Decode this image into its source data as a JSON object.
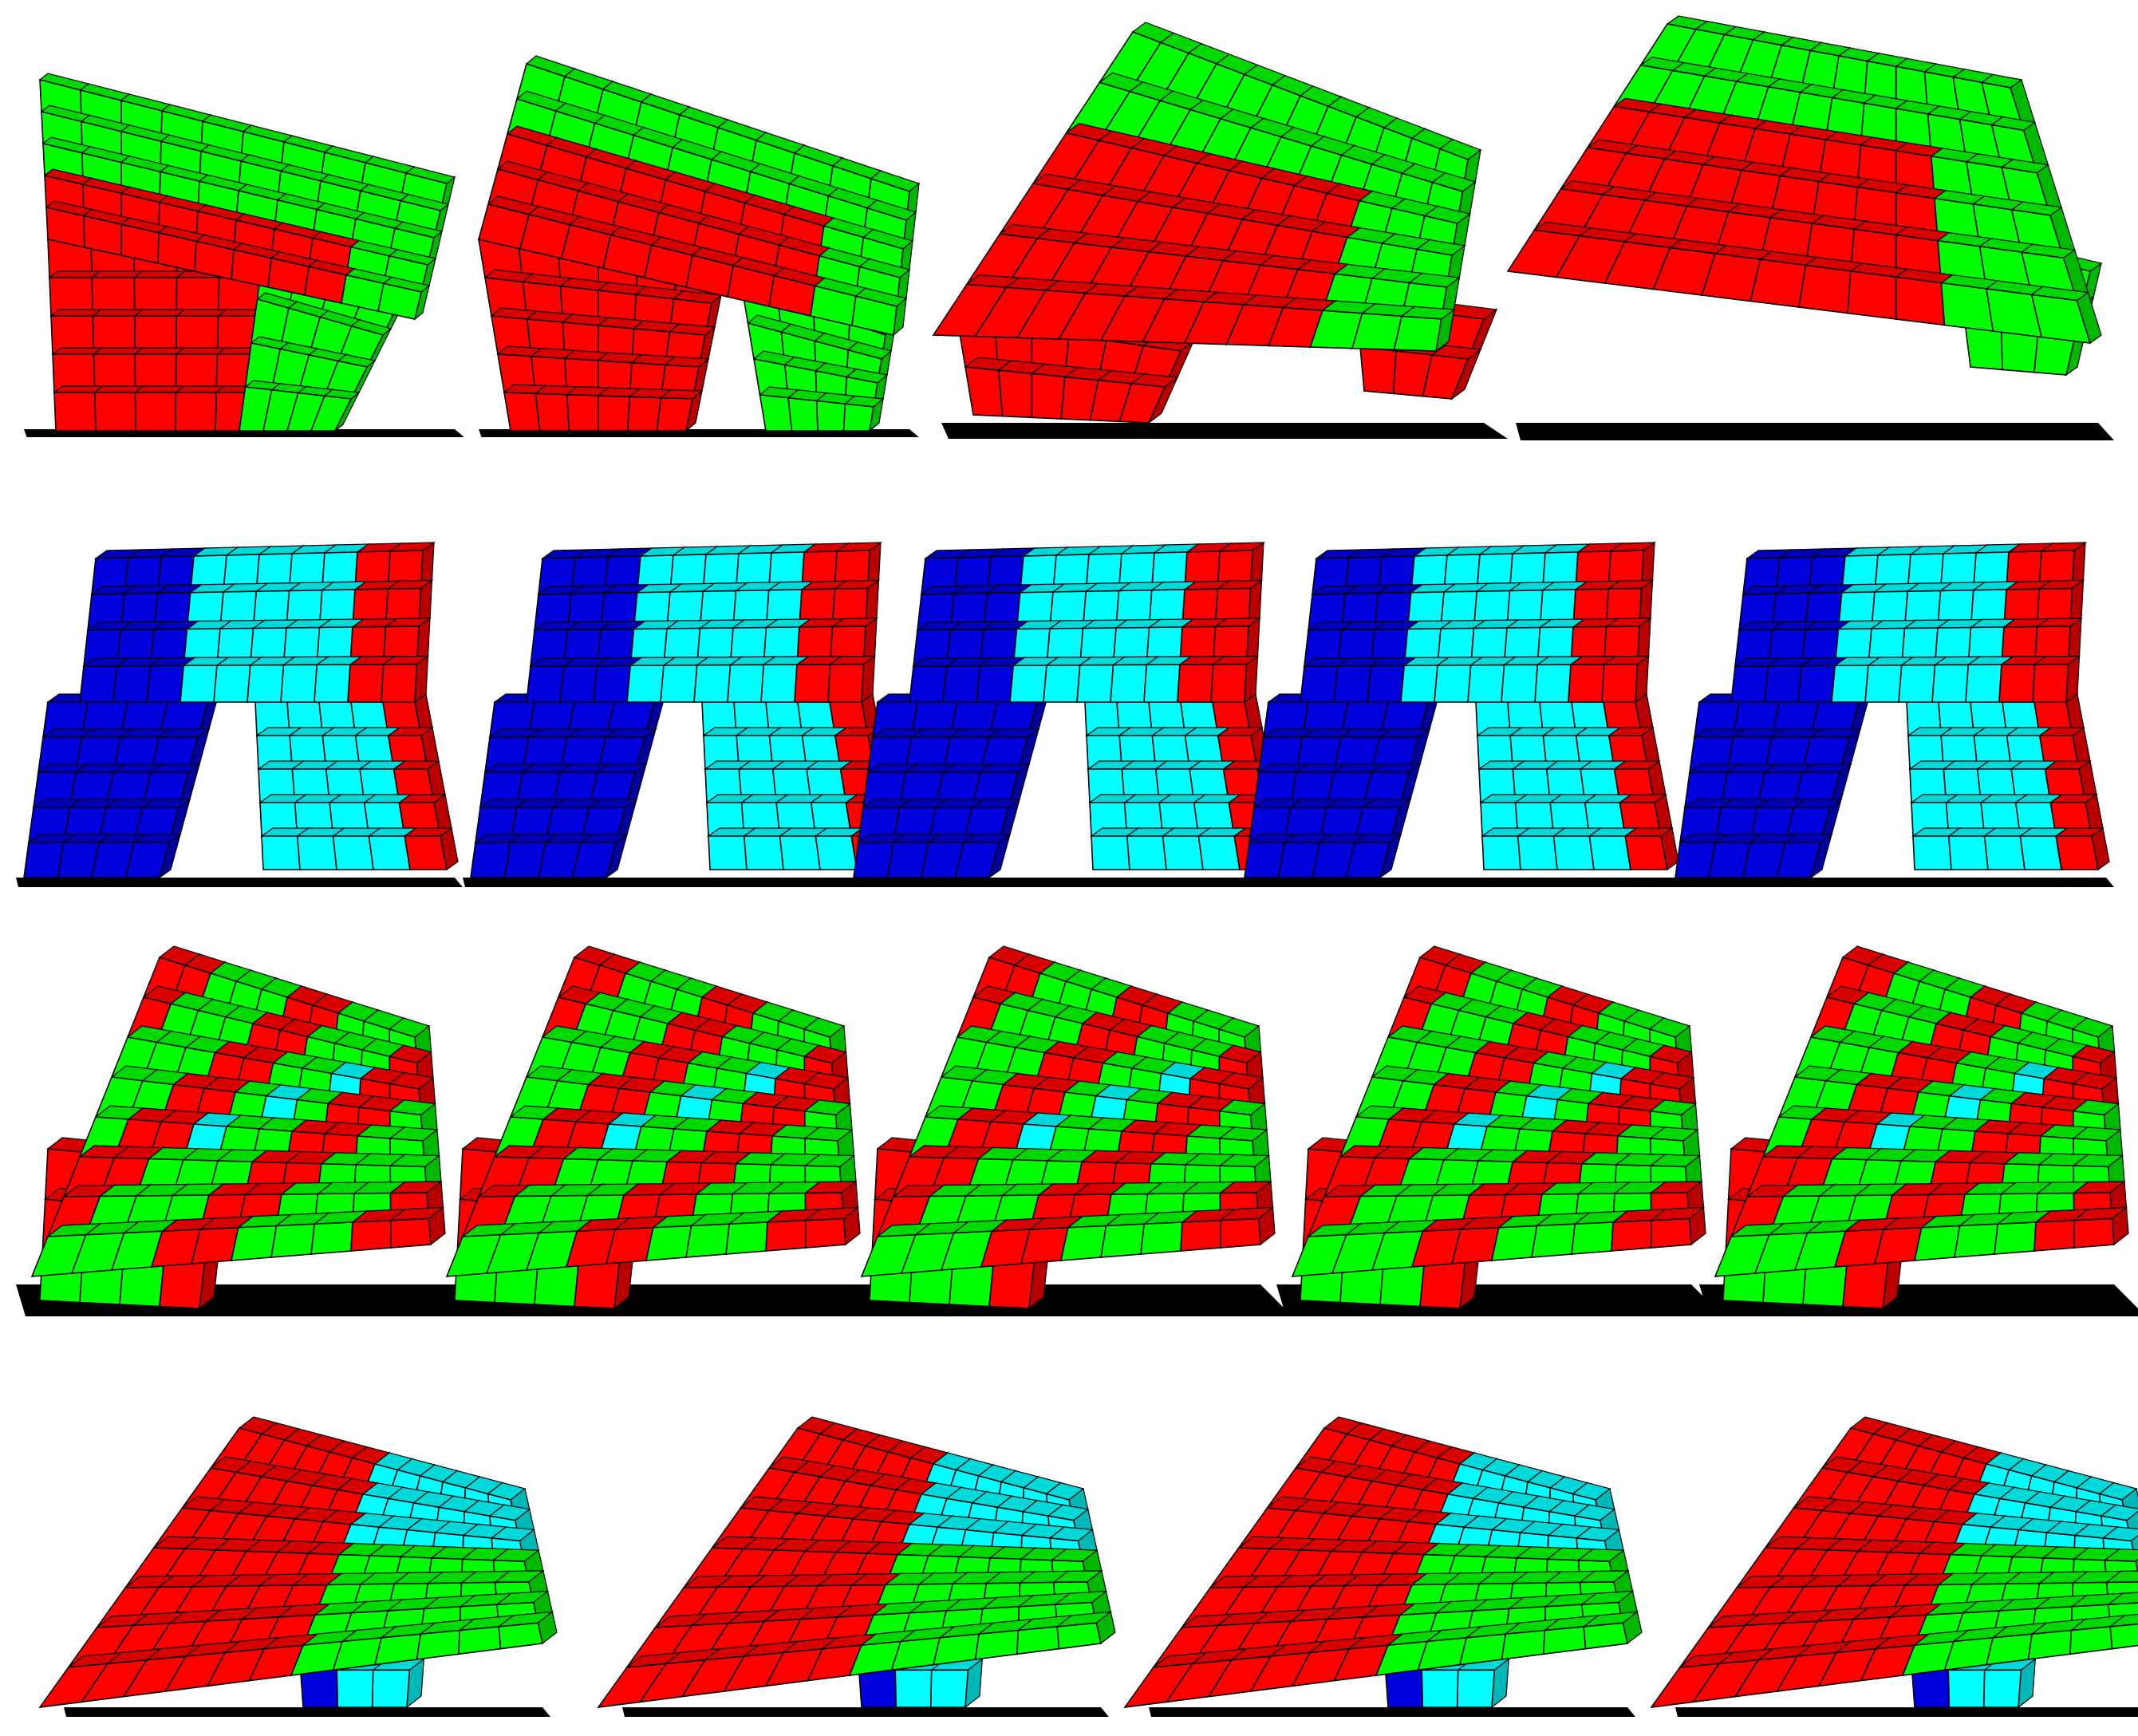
{
  "palette": {
    "red": "#ff0000",
    "green": "#00ff00",
    "cyan": "#00ffff",
    "blue": "#0000dd",
    "outline": "#000000",
    "shadow": "#000000",
    "background": "#ffffff"
  },
  "rows": [
    {
      "name": "row-1",
      "colors": [
        "red",
        "green"
      ],
      "count": 4
    },
    {
      "name": "row-2",
      "colors": [
        "blue",
        "cyan",
        "red"
      ],
      "count": 5
    },
    {
      "name": "row-3",
      "colors": [
        "green",
        "red",
        "cyan"
      ],
      "count": 5
    },
    {
      "name": "row-4",
      "colors": [
        "red",
        "cyan",
        "green",
        "blue"
      ],
      "count": 4
    }
  ]
}
